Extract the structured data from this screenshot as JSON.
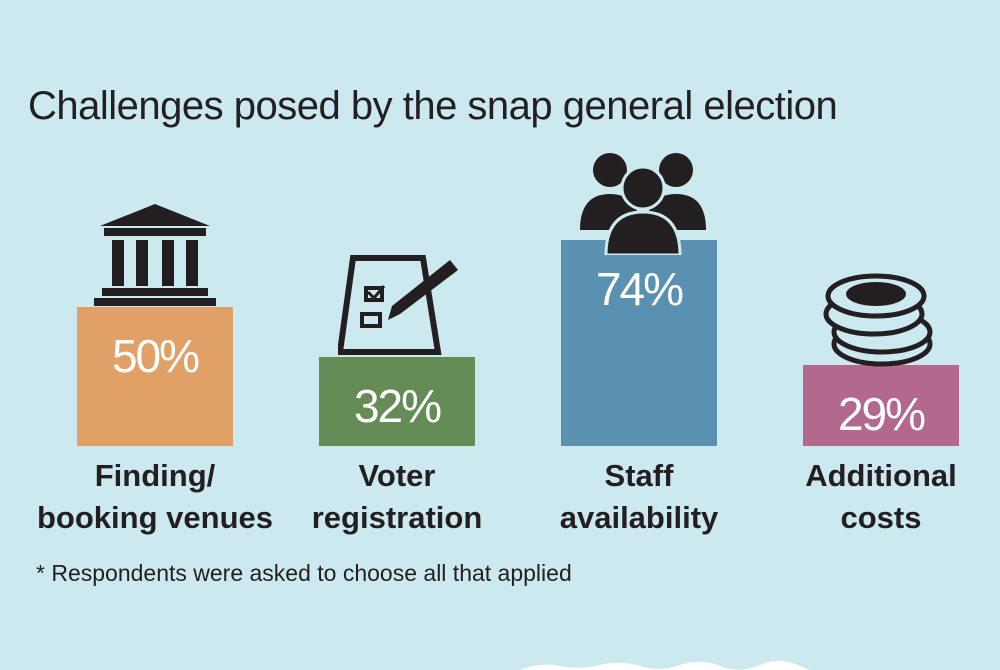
{
  "chart_data": {
    "type": "bar",
    "title": "Challenges posed by the snap general election",
    "categories": [
      "Finding/ booking venues",
      "Voter registration",
      "Staff availability",
      "Additional costs"
    ],
    "category_lines": [
      [
        "Finding/",
        "booking venues"
      ],
      [
        "Voter",
        "registration"
      ],
      [
        "Staff",
        "availability"
      ],
      [
        "Additional",
        "costs"
      ]
    ],
    "values": [
      50,
      32,
      74,
      29
    ],
    "value_labels": [
      "50%",
      "32%",
      "74%",
      "29%"
    ],
    "colors": [
      "#e0a066",
      "#658c55",
      "#5a91b1",
      "#b3688e"
    ],
    "icons": [
      "building-columns-icon",
      "ballot-box-icon",
      "people-group-icon",
      "coin-stack-icon"
    ],
    "ylim": [
      0,
      100
    ],
    "grid": false,
    "legend": "none",
    "footnote": "* Respondents were asked to choose all that applied"
  },
  "background": "#cce9ef"
}
